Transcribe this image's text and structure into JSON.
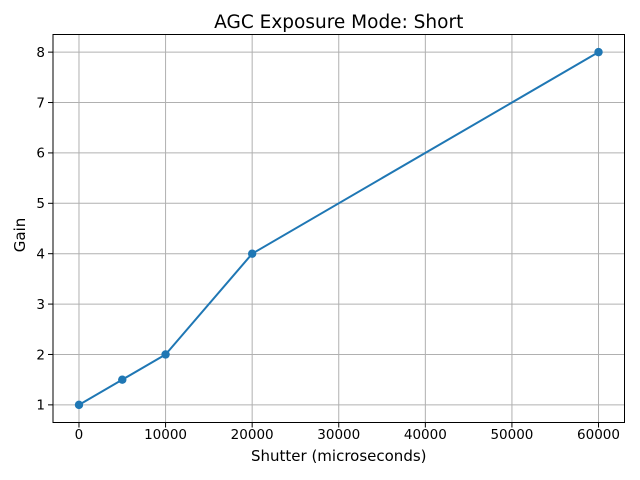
{
  "figure": {
    "background": "#ffffff"
  },
  "chart_data": {
    "type": "line",
    "title": "AGC Exposure Mode: Short",
    "xlabel": "Shutter (microseconds)",
    "ylabel": "Gain",
    "x": [
      0,
      5000,
      10000,
      20000,
      60000
    ],
    "y": [
      1,
      1.5,
      2,
      4,
      8
    ],
    "points": [
      {
        "shutter": 0,
        "gain": 1
      },
      {
        "shutter": 5000,
        "gain": 1.5
      },
      {
        "shutter": 10000,
        "gain": 2
      },
      {
        "shutter": 20000,
        "gain": 4
      },
      {
        "shutter": 60000,
        "gain": 8
      }
    ],
    "xlim": [
      -3000,
      63000
    ],
    "ylim": [
      0.65,
      8.35
    ],
    "xticks": [
      0,
      10000,
      20000,
      30000,
      40000,
      50000,
      60000
    ],
    "xtick_labels": [
      "0",
      "10000",
      "20000",
      "30000",
      "40000",
      "50000",
      "60000"
    ],
    "yticks": [
      1,
      2,
      3,
      4,
      5,
      6,
      7,
      8
    ],
    "ytick_labels": [
      "1",
      "2",
      "3",
      "4",
      "5",
      "6",
      "7",
      "8"
    ],
    "grid": true,
    "legend": "none",
    "line_color": "#1f77b4",
    "marker": "circle",
    "marker_color": "#1f77b4",
    "grid_color": "#b0b0b0",
    "spine_color": "#000000",
    "tick_color": "#000000",
    "text_color": "#000000",
    "line_width": 2,
    "marker_radius": 4.2
  }
}
